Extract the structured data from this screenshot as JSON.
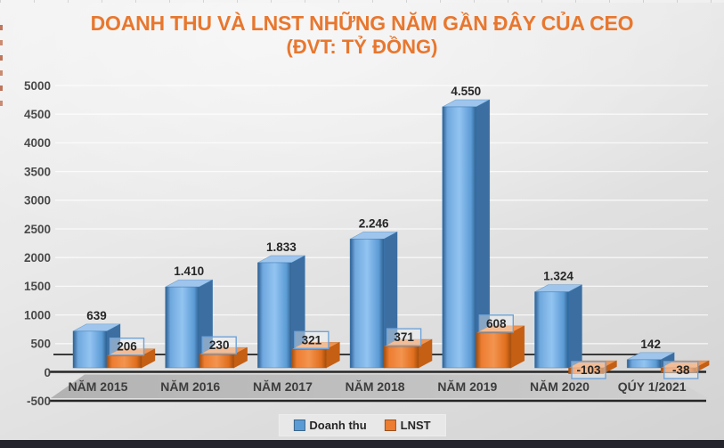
{
  "title": {
    "line1": "DOANH THU VÀ LNST NHỮNG NĂM GẦN ĐÂY CỦA CEO",
    "line2": "(ĐVT: TỶ ĐỒNG)",
    "color": "#E8772E"
  },
  "chart_data": {
    "type": "bar",
    "style": "3d-clustered-column",
    "title": "DOANH THU VÀ LNST NHỮNG NĂM GẦN ĐÂY CỦA CEO",
    "subtitle": "(ĐVT: TỶ ĐỒNG)",
    "unit": "tỷ đồng",
    "categories": [
      "NĂM 2015",
      "NĂM 2016",
      "NĂM 2017",
      "NĂM 2018",
      "NĂM 2019",
      "NĂM 2020",
      "QÚY 1/2021"
    ],
    "series": [
      {
        "name": "Doanh thu",
        "values": [
          639,
          1410,
          1833,
          2246,
          4550,
          1324,
          142
        ],
        "labels": [
          "639",
          "1.410",
          "1.833",
          "2.246",
          "4.550",
          "1.324",
          "142"
        ],
        "colors": {
          "main": "#5B9BD5",
          "grad": [
            "#2E5E8E",
            "#6FA8DE",
            "#93C4F1",
            "#5B9BD5",
            "#2E5E8E"
          ],
          "top": "#9FC5EC",
          "side": "#3C6EA1",
          "stroke": "#2E75B6"
        }
      },
      {
        "name": "LNST",
        "values": [
          206,
          230,
          321,
          371,
          608,
          -103,
          -38
        ],
        "labels": [
          "206",
          "230",
          "321",
          "371",
          "608",
          "-103",
          "-38"
        ],
        "colors": {
          "main": "#ED7D31",
          "grad": [
            "#A34D0E",
            "#ED7D31",
            "#F3944F",
            "#E06F1E",
            "#A34D0E"
          ],
          "top": "#EF9452",
          "side": "#C55F13",
          "stroke": "#B35309"
        },
        "label_box": {
          "fill": "rgba(248,250,252,0.40)",
          "border": "#6FA3D8"
        }
      }
    ],
    "ylim": [
      -500,
      5000
    ],
    "ytick_step": 500,
    "yticks": [
      "5000",
      "4500",
      "4000",
      "3500",
      "3000",
      "2500",
      "2000",
      "1500",
      "1000",
      "500",
      "0",
      "-500"
    ],
    "grid": true,
    "legend_position": "bottom",
    "text_colors": {
      "axis": "#4a4a4a",
      "category": "#3d3d3d",
      "value": "#262626"
    }
  }
}
